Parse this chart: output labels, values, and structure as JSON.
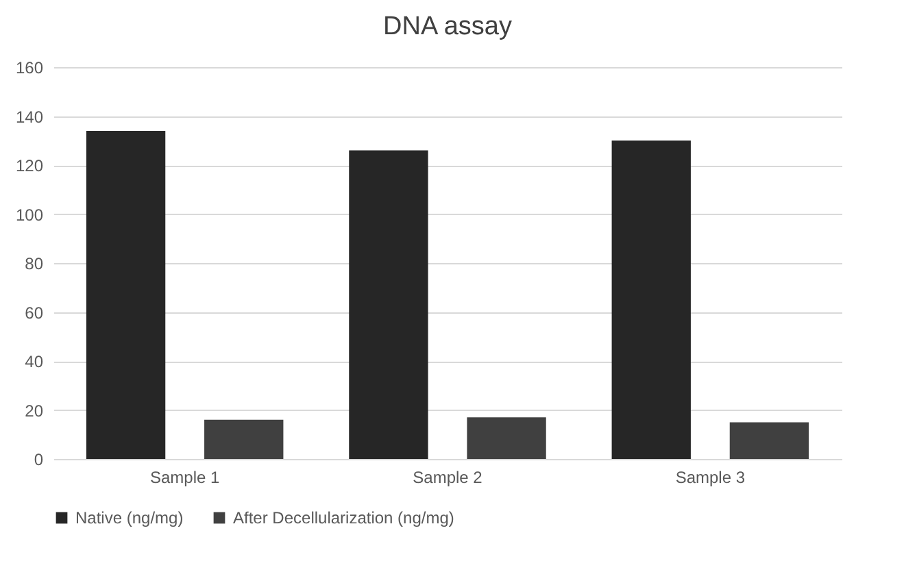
{
  "chart_data": {
    "type": "bar",
    "title": "DNA assay",
    "categories": [
      "Sample 1",
      "Sample 2",
      "Sample 3"
    ],
    "series": [
      {
        "name": "Native (ng/mg)",
        "color": "#262626",
        "values": [
          134,
          126,
          130
        ]
      },
      {
        "name": "After Decellularization (ng/mg)",
        "color": "#404040",
        "values": [
          16,
          17,
          15
        ]
      }
    ],
    "ylim": [
      0,
      160
    ],
    "yticks": [
      0,
      20,
      40,
      60,
      80,
      100,
      120,
      140,
      160
    ],
    "grid": "y",
    "legend": "bottom"
  }
}
